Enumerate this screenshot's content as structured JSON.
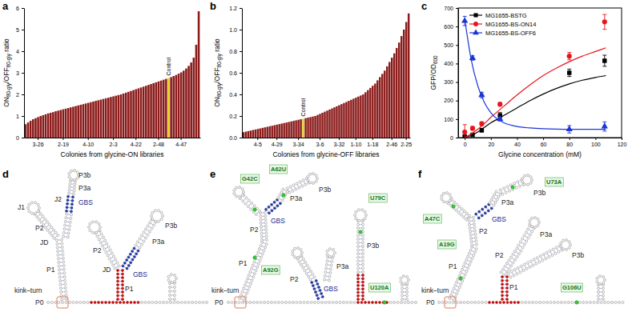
{
  "chart_data": [
    {
      "type": "bar",
      "panel_label": "a",
      "xlabel": "Colonies from glycine-ON libraries",
      "ylabel": [
        "ON",
        "80-gly",
        "/OFF",
        "80-gly",
        " ratio"
      ],
      "categories": [
        null,
        null,
        null,
        null,
        null,
        "3-26",
        null,
        null,
        null,
        null,
        null,
        null,
        null,
        null,
        null,
        "2-19",
        null,
        null,
        null,
        null,
        null,
        null,
        null,
        null,
        null,
        "4-10",
        null,
        null,
        null,
        null,
        null,
        null,
        null,
        null,
        null,
        "2-3",
        null,
        null,
        null,
        null,
        null,
        null,
        null,
        null,
        "4-22",
        null,
        null,
        null,
        null,
        null,
        null,
        null,
        null,
        "2-48",
        null,
        null,
        null,
        null,
        null,
        null,
        null,
        null,
        "4-47",
        null,
        null,
        null,
        null,
        null,
        null,
        null
      ],
      "values": [
        0.62,
        0.7,
        0.78,
        0.85,
        0.9,
        0.95,
        1.0,
        1.04,
        1.08,
        1.12,
        1.15,
        1.18,
        1.22,
        1.25,
        1.28,
        1.31,
        1.34,
        1.37,
        1.4,
        1.43,
        1.46,
        1.49,
        1.52,
        1.55,
        1.58,
        1.61,
        1.64,
        1.67,
        1.7,
        1.73,
        1.76,
        1.79,
        1.82,
        1.85,
        1.88,
        1.91,
        1.94,
        1.97,
        2.0,
        2.04,
        2.08,
        2.12,
        2.16,
        2.2,
        2.24,
        2.28,
        2.32,
        2.36,
        2.4,
        2.44,
        2.48,
        2.52,
        2.56,
        2.6,
        2.64,
        2.68,
        2.72,
        2.76,
        2.8,
        2.85,
        2.9,
        2.96,
        3.02,
        3.1,
        3.2,
        3.32,
        3.48,
        3.7,
        4.3,
        5.85
      ],
      "colors": [
        "#8b1a1a",
        "#8b1a1a",
        "#8b1a1a",
        "#8b1a1a",
        "#8b1a1a",
        "#8b1a1a",
        "#8b1a1a",
        "#8b1a1a",
        "#8b1a1a",
        "#8b1a1a",
        "#8b1a1a",
        "#8b1a1a",
        "#8b1a1a",
        "#8b1a1a",
        "#8b1a1a",
        "#8b1a1a",
        "#8b1a1a",
        "#8b1a1a",
        "#8b1a1a",
        "#8b1a1a",
        "#8b1a1a",
        "#8b1a1a",
        "#8b1a1a",
        "#8b1a1a",
        "#8b1a1a",
        "#8b1a1a",
        "#8b1a1a",
        "#8b1a1a",
        "#8b1a1a",
        "#8b1a1a",
        "#8b1a1a",
        "#8b1a1a",
        "#8b1a1a",
        "#8b1a1a",
        "#8b1a1a",
        "#8b1a1a",
        "#8b1a1a",
        "#8b1a1a",
        "#8b1a1a",
        "#8b1a1a",
        "#8b1a1a",
        "#8b1a1a",
        "#8b1a1a",
        "#8b1a1a",
        "#8b1a1a",
        "#8b1a1a",
        "#8b1a1a",
        "#8b1a1a",
        "#8b1a1a",
        "#8b1a1a",
        "#8b1a1a",
        "#8b1a1a",
        "#8b1a1a",
        "#8b1a1a",
        "#8b1a1a",
        "#8b1a1a",
        "#8b1a1a",
        "#e2cf1c",
        "#8b1a1a",
        "#8b1a1a",
        "#8b1a1a",
        "#8b1a1a",
        "#8b1a1a",
        "#8b1a1a",
        "#8b1a1a",
        "#8b1a1a",
        "#8b1a1a",
        "#8b1a1a",
        "#8b1a1a",
        "#8b1a1a"
      ],
      "annotations": [
        {
          "text": "Control",
          "x": 57
        }
      ],
      "ylim": [
        0,
        6
      ],
      "yticks": [
        0,
        1,
        2,
        3,
        4,
        5,
        6
      ]
    },
    {
      "type": "bar",
      "panel_label": "b",
      "xlabel": "Colonies from glycine-OFF libraries",
      "ylabel": [
        "ON",
        "80-gly",
        "/OFF",
        "80-gly",
        " ratio"
      ],
      "categories": [
        null,
        null,
        null,
        null,
        null,
        null,
        "4-5",
        null,
        null,
        null,
        null,
        null,
        null,
        null,
        "4-29",
        null,
        null,
        null,
        null,
        null,
        null,
        null,
        null,
        "3-34",
        null,
        null,
        null,
        null,
        null,
        null,
        null,
        null,
        "3-6",
        null,
        null,
        null,
        null,
        null,
        null,
        null,
        "3-32",
        null,
        null,
        null,
        null,
        null,
        null,
        "1-10",
        null,
        null,
        null,
        null,
        null,
        null,
        "1-18",
        null,
        null,
        null,
        null,
        null,
        null,
        null,
        "2-46",
        null,
        null,
        null,
        null,
        null,
        "2-25",
        null
      ],
      "values": [
        0.05,
        0.055,
        0.06,
        0.065,
        0.07,
        0.075,
        0.08,
        0.085,
        0.09,
        0.095,
        0.1,
        0.105,
        0.11,
        0.115,
        0.12,
        0.125,
        0.13,
        0.135,
        0.14,
        0.145,
        0.15,
        0.155,
        0.16,
        0.165,
        0.17,
        0.175,
        0.18,
        0.185,
        0.19,
        0.195,
        0.2,
        0.21,
        0.22,
        0.23,
        0.24,
        0.25,
        0.26,
        0.27,
        0.28,
        0.29,
        0.3,
        0.31,
        0.32,
        0.33,
        0.34,
        0.35,
        0.36,
        0.37,
        0.38,
        0.39,
        0.4,
        0.42,
        0.44,
        0.46,
        0.48,
        0.5,
        0.53,
        0.56,
        0.59,
        0.62,
        0.66,
        0.7,
        0.74,
        0.78,
        0.83,
        0.88,
        0.94,
        1.0,
        1.07,
        1.15
      ],
      "colors": [
        "#8b1a1a",
        "#8b1a1a",
        "#8b1a1a",
        "#8b1a1a",
        "#8b1a1a",
        "#8b1a1a",
        "#8b1a1a",
        "#8b1a1a",
        "#8b1a1a",
        "#8b1a1a",
        "#8b1a1a",
        "#8b1a1a",
        "#8b1a1a",
        "#8b1a1a",
        "#8b1a1a",
        "#8b1a1a",
        "#8b1a1a",
        "#8b1a1a",
        "#8b1a1a",
        "#8b1a1a",
        "#8b1a1a",
        "#8b1a1a",
        "#8b1a1a",
        "#8b1a1a",
        "#8b1a1a",
        "#e2cf1c",
        "#8b1a1a",
        "#8b1a1a",
        "#8b1a1a",
        "#8b1a1a",
        "#8b1a1a",
        "#8b1a1a",
        "#8b1a1a",
        "#8b1a1a",
        "#8b1a1a",
        "#8b1a1a",
        "#8b1a1a",
        "#8b1a1a",
        "#8b1a1a",
        "#8b1a1a",
        "#8b1a1a",
        "#8b1a1a",
        "#8b1a1a",
        "#8b1a1a",
        "#8b1a1a",
        "#8b1a1a",
        "#8b1a1a",
        "#8b1a1a",
        "#8b1a1a",
        "#8b1a1a",
        "#8b1a1a",
        "#8b1a1a",
        "#8b1a1a",
        "#8b1a1a",
        "#8b1a1a",
        "#8b1a1a",
        "#8b1a1a",
        "#8b1a1a",
        "#8b1a1a",
        "#8b1a1a",
        "#8b1a1a",
        "#8b1a1a",
        "#8b1a1a",
        "#8b1a1a",
        "#8b1a1a",
        "#8b1a1a",
        "#8b1a1a",
        "#8b1a1a",
        "#8b1a1a",
        "#8b1a1a"
      ],
      "annotations": [
        {
          "text": "Control",
          "x": 25
        }
      ],
      "ylim": [
        0,
        1.2
      ],
      "yticks": [
        {
          "value": 0,
          "label": "0.0"
        },
        0.2,
        0.4,
        0.6,
        0.8,
        {
          "value": 1,
          "label": "1.0"
        },
        1.2
      ]
    },
    {
      "type": "scatter",
      "panel_label": "c",
      "xlabel": "Glycine concentration (mM)",
      "ylabel": [
        "GFP/OD",
        "600"
      ],
      "xlim": [
        -5,
        120
      ],
      "xticks": [
        0,
        20,
        40,
        60,
        80,
        100,
        120
      ],
      "ylim": [
        0,
        700
      ],
      "yticks": [
        0,
        100,
        200,
        300,
        400,
        500,
        600,
        700
      ],
      "legend": "upper left",
      "series": [
        {
          "name": "MG1655-BSTG",
          "color": "#000000",
          "marker": "square",
          "x": [
            0,
            6,
            13,
            27,
            80,
            107
          ],
          "values": [
            5,
            15,
            40,
            120,
            350,
            415
          ],
          "errors": [
            8,
            8,
            10,
            15,
            20,
            30
          ],
          "fit": {
            "x": [
              0,
              5,
              10,
              15,
              20,
              25,
              30,
              40,
              50,
              60,
              70,
              80,
              90,
              100,
              108
            ],
            "values": [
              0,
              12,
              30,
              55,
              80,
              100,
              120,
              160,
              200,
              235,
              265,
              290,
              310,
              325,
              335
            ]
          }
        },
        {
          "name": "MG1655-BS-ON14",
          "color": "#e8141c",
          "marker": "circle",
          "x": [
            0,
            6,
            13,
            27,
            80,
            107
          ],
          "values": [
            30,
            50,
            75,
            180,
            440,
            625
          ],
          "errors": [
            40,
            10,
            10,
            10,
            20,
            40
          ],
          "fit": {
            "x": [
              0,
              5,
              10,
              15,
              20,
              25,
              30,
              40,
              50,
              60,
              70,
              80,
              90,
              100,
              108
            ],
            "values": [
              0,
              20,
              45,
              75,
              110,
              140,
              170,
              230,
              285,
              335,
              375,
              410,
              440,
              465,
              485
            ]
          }
        },
        {
          "name": "MG1655-BS-OFF6",
          "color": "#1a35d6",
          "marker": "triangle",
          "x": [
            0,
            6,
            13,
            27,
            80,
            107
          ],
          "values": [
            630,
            430,
            230,
            100,
            45,
            60
          ],
          "errors": [
            25,
            12,
            15,
            10,
            20,
            25
          ],
          "fit": {
            "x": [
              0,
              5,
              10,
              15,
              20,
              25,
              30,
              40,
              50,
              60,
              70,
              80,
              90,
              100,
              108
            ],
            "values": [
              640,
              420,
              280,
              190,
              135,
              100,
              80,
              60,
              52,
              48,
              46,
              45,
              45,
              45,
              45
            ]
          }
        }
      ]
    }
  ],
  "diagrams": [
    {
      "panel_label": "d",
      "labels": [
        "P3b",
        "J2",
        "P3a",
        "GBS",
        "JD",
        "J1",
        "P2",
        "P2",
        "P3a",
        "P3b",
        "GBS",
        "JD",
        "P1",
        "P1",
        "kink–turn",
        "P0"
      ],
      "mutations": []
    },
    {
      "panel_label": "e",
      "labels": [
        "P3a",
        "P3b",
        "GBS",
        "P2",
        "P1",
        "kink–turn",
        "P0",
        "P3b",
        "P2",
        "P3a",
        "GBS"
      ],
      "mutations": [
        "G42C",
        "A62U",
        "U79C",
        "A92G",
        "U120A"
      ]
    },
    {
      "panel_label": "f",
      "labels": [
        "P3a",
        "P3b",
        "GBS",
        "P2",
        "P1",
        "P2",
        "P3a",
        "P3b",
        "kink–turn",
        "P0",
        "P1"
      ],
      "mutations": [
        "A47C",
        "U73A",
        "A19G",
        "G106U"
      ]
    }
  ]
}
